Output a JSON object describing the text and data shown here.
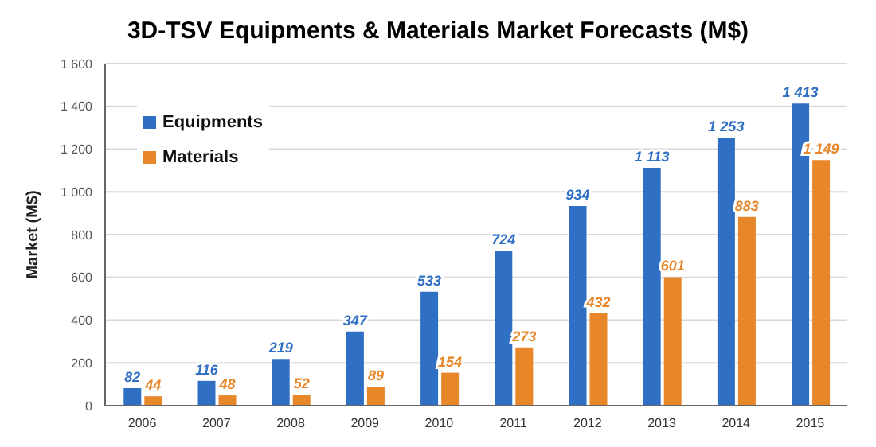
{
  "chart_data": {
    "type": "bar",
    "title": "3D-TSV Equipments & Materials Market Forecasts (M$)",
    "ylabel": "Market (M$)",
    "categories": [
      "2006",
      "2007",
      "2008",
      "2009",
      "2010",
      "2011",
      "2012",
      "2013",
      "2014",
      "2015"
    ],
    "series": [
      {
        "name": "Equipments",
        "color": "#2f6fc4",
        "values": [
          82,
          116,
          219,
          347,
          533,
          724,
          934,
          1113,
          1253,
          1413
        ],
        "value_labels": [
          "82",
          "116",
          "219",
          "347",
          "533",
          "724",
          "934",
          "1 113",
          "1 253",
          "1 413"
        ]
      },
      {
        "name": "Materials",
        "color": "#e8862a",
        "values": [
          44,
          48,
          52,
          89,
          154,
          273,
          432,
          601,
          883,
          1149
        ],
        "value_labels": [
          "44",
          "48",
          "52",
          "89",
          "154",
          "273",
          "432",
          "601",
          "883",
          "1 149"
        ]
      }
    ],
    "ylim": [
      0,
      1600
    ],
    "yticks": [
      0,
      200,
      400,
      600,
      800,
      {
        "value": 1000,
        "label": "1 000"
      },
      {
        "value": 1200,
        "label": "1 200"
      },
      {
        "value": 1400,
        "label": "1 400"
      },
      {
        "value": 1600,
        "label": "1 600"
      }
    ],
    "grid": "y",
    "legend": "top left"
  }
}
